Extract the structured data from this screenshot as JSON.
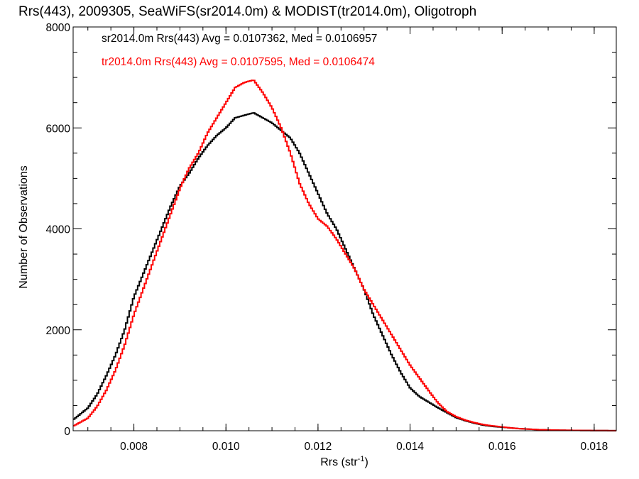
{
  "chart_data": {
    "type": "line",
    "title": "Rrs(443), 2009305, SeaWiFS(sr2014.0m) & MODIST(tr2014.0m), Oligotroph",
    "xlabel_main": "Rrs (str",
    "xlabel_sup": "-1",
    "xlabel_end": ")",
    "ylabel": "Number of Observations",
    "xlim": [
      0.00668,
      0.01848
    ],
    "ylim": [
      0,
      8000
    ],
    "xticks": [
      0.008,
      0.01,
      0.012,
      0.014,
      0.016,
      0.018
    ],
    "xtick_labels": [
      "0.008",
      "0.010",
      "0.012",
      "0.014",
      "0.016",
      "0.018"
    ],
    "yticks": [
      0,
      2000,
      4000,
      6000,
      8000
    ],
    "ytick_labels": [
      "0",
      "2000",
      "4000",
      "6000",
      "8000"
    ],
    "grid": false,
    "legend_position": "top-left",
    "series": [
      {
        "name": "sr2014.0m",
        "legend": "sr2014.0m Rrs(443) Avg = 0.0107362, Med = 0.0106957",
        "color": "#000000",
        "x": [
          0.0067,
          0.007,
          0.0072,
          0.0074,
          0.0076,
          0.0078,
          0.008,
          0.0082,
          0.0084,
          0.0086,
          0.0088,
          0.009,
          0.0092,
          0.0094,
          0.0096,
          0.0098,
          0.01,
          0.0102,
          0.0104,
          0.0106,
          0.0108,
          0.011,
          0.0112,
          0.0114,
          0.0116,
          0.0118,
          0.012,
          0.0122,
          0.0124,
          0.0126,
          0.0128,
          0.013,
          0.0132,
          0.0134,
          0.0136,
          0.0138,
          0.014,
          0.0142,
          0.0144,
          0.0146,
          0.0148,
          0.015,
          0.0152,
          0.0154,
          0.0156,
          0.0158,
          0.016,
          0.0162,
          0.0164,
          0.0166,
          0.0168,
          0.017,
          0.0172,
          0.0174,
          0.0176,
          0.0178,
          0.018,
          0.0182,
          0.0184
        ],
        "y": [
          230,
          450,
          720,
          1090,
          1500,
          2000,
          2650,
          3100,
          3550,
          4000,
          4450,
          4850,
          5100,
          5400,
          5650,
          5850,
          6000,
          6200,
          6250,
          6300,
          6200,
          6100,
          5950,
          5800,
          5500,
          5100,
          4700,
          4300,
          4000,
          3600,
          3200,
          2800,
          2300,
          1900,
          1500,
          1150,
          850,
          680,
          570,
          460,
          360,
          260,
          200,
          150,
          110,
          85,
          70,
          55,
          40,
          30,
          22,
          16,
          12,
          9,
          7,
          5,
          4,
          3,
          2
        ]
      },
      {
        "name": "tr2014.0m",
        "legend": "tr2014.0m Rrs(443) Avg = 0.0107595, Med = 0.0106474",
        "color": "#ff0000",
        "x": [
          0.0067,
          0.007,
          0.0072,
          0.0074,
          0.0076,
          0.0078,
          0.008,
          0.0082,
          0.0084,
          0.0086,
          0.0088,
          0.009,
          0.0092,
          0.0094,
          0.0096,
          0.0098,
          0.01,
          0.0102,
          0.0104,
          0.0106,
          0.0108,
          0.011,
          0.0112,
          0.0114,
          0.0116,
          0.0118,
          0.012,
          0.0122,
          0.0124,
          0.0126,
          0.0128,
          0.013,
          0.0132,
          0.0134,
          0.0136,
          0.0138,
          0.014,
          0.0142,
          0.0144,
          0.0146,
          0.0148,
          0.015,
          0.0152,
          0.0154,
          0.0156,
          0.0158,
          0.016,
          0.0162,
          0.0164,
          0.0166,
          0.0168,
          0.017,
          0.0172,
          0.0174,
          0.0176,
          0.0178,
          0.018,
          0.0182,
          0.0184
        ],
        "y": [
          100,
          250,
          480,
          800,
          1200,
          1700,
          2300,
          2800,
          3300,
          3800,
          4300,
          4800,
          5200,
          5500,
          5900,
          6200,
          6500,
          6800,
          6900,
          6950,
          6700,
          6400,
          6000,
          5500,
          4900,
          4500,
          4200,
          4050,
          3800,
          3500,
          3200,
          2800,
          2500,
          2200,
          1900,
          1600,
          1300,
          1050,
          800,
          560,
          380,
          280,
          210,
          160,
          120,
          95,
          75,
          55,
          40,
          30,
          22,
          16,
          12,
          9,
          7,
          5,
          4,
          3,
          2
        ]
      }
    ]
  }
}
